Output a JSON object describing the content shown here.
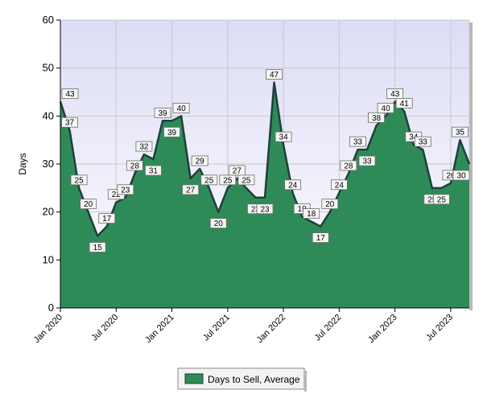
{
  "chart_data": {
    "type": "area",
    "title": "",
    "xlabel": "",
    "ylabel": "Days",
    "ylim": [
      0,
      60
    ],
    "yticks": [
      0,
      10,
      20,
      30,
      40,
      50,
      60
    ],
    "x": [
      "2020-01",
      "2020-02",
      "2020-03",
      "2020-04",
      "2020-05",
      "2020-06",
      "2020-07",
      "2020-08",
      "2020-09",
      "2020-10",
      "2020-11",
      "2020-12",
      "2021-01",
      "2021-02",
      "2021-03",
      "2021-04",
      "2021-05",
      "2021-06",
      "2021-07",
      "2021-08",
      "2021-09",
      "2021-10",
      "2021-11",
      "2021-12",
      "2022-01",
      "2022-02",
      "2022-03",
      "2022-04",
      "2022-05",
      "2022-06",
      "2022-07",
      "2022-08",
      "2022-09",
      "2022-10",
      "2022-11",
      "2022-12",
      "2023-01",
      "2023-02",
      "2023-03",
      "2023-04",
      "2023-05",
      "2023-06",
      "2023-07",
      "2023-08",
      "2023-09"
    ],
    "xtick_labels": [
      {
        "index": 0,
        "label": "Jan 2020"
      },
      {
        "index": 6,
        "label": "Jul 2020"
      },
      {
        "index": 12,
        "label": "Jan 2021"
      },
      {
        "index": 18,
        "label": "Jul 2021"
      },
      {
        "index": 24,
        "label": "Jan 2022"
      },
      {
        "index": 30,
        "label": "Jul 2022"
      },
      {
        "index": 36,
        "label": "Jan 2023"
      },
      {
        "index": 42,
        "label": "Jul 2023"
      }
    ],
    "series": [
      {
        "name": "Days to Sell, Average",
        "color": "#2e8b57",
        "values": [
          43,
          37,
          25,
          20,
          15,
          17,
          22,
          23,
          28,
          32,
          31,
          39,
          39,
          40,
          27,
          29,
          25,
          20,
          25,
          27,
          25,
          23,
          23,
          47,
          34,
          24,
          19,
          18,
          17,
          20,
          24,
          28,
          33,
          33,
          38,
          40,
          43,
          41,
          34,
          33,
          25,
          25,
          26,
          35,
          30
        ]
      }
    ],
    "legend": "bottom-center",
    "grid": true,
    "plot_background": "#e8e8f8",
    "line_color": "#1f3f3a"
  }
}
